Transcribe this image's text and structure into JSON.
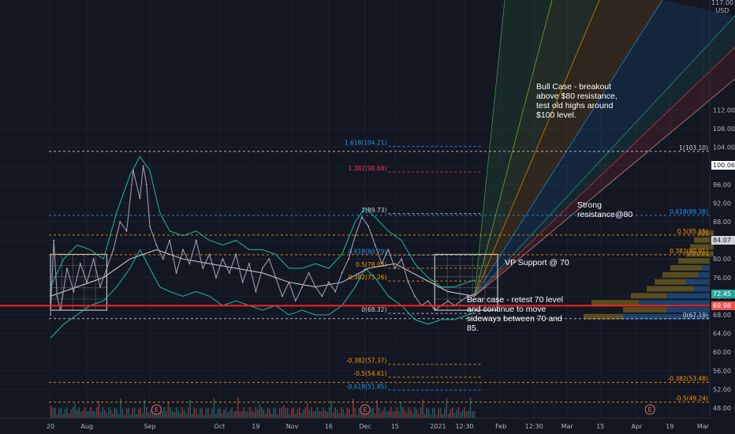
{
  "axis": {
    "currency": "USD",
    "top_partial": "117.00"
  },
  "annotations": {
    "bull": "Bull Case - breakout above $80 resistance, test old highs around $100 level.",
    "resistance": "Strong resistance@80",
    "vp_support": "VP Support @ 70",
    "bear": "Bear case - retest 70 level and continue to move sideways between 70 and 85."
  },
  "price_tags": [
    {
      "text": "100.06",
      "value": 100.06,
      "bg": "#ffffff",
      "fg": "#131722"
    },
    {
      "text": "84.07",
      "value": 84.07,
      "bg": "#d1d4dc",
      "fg": "#131722"
    },
    {
      "text": "72.45",
      "value": 72.45,
      "bg": "#26a69a",
      "fg": "#ffffff"
    },
    {
      "text": "69.98",
      "value": 69.98,
      "bg": "#ef5350",
      "fg": "#ffffff"
    }
  ],
  "colors": {
    "background": "#131722",
    "support_line": "#ff1e1e",
    "fib_orange": "#ff9800",
    "fib_blue": "#2196f3",
    "fib_red": "#f23645",
    "fib_white": "#d1d4dc",
    "price_line": "#9b9bb0",
    "bollinger": "#21b7a6",
    "volume_profile_up": "#1e4a7a",
    "volume_profile_down": "#6b5a1e",
    "box": "#e0e0e0"
  },
  "chart_data": {
    "type": "line",
    "instrument_currency": "USD",
    "y_range": [
      46.0,
      117.0
    ],
    "y_ticks": [
      {
        "label": "48.00",
        "value": 48
      },
      {
        "label": "52.00",
        "value": 52
      },
      {
        "label": "56.00",
        "value": 56
      },
      {
        "label": "60.00",
        "value": 60
      },
      {
        "label": "64.00",
        "value": 64
      },
      {
        "label": "68.00",
        "value": 68
      },
      {
        "label": "72.00",
        "value": 72
      },
      {
        "label": "76.00",
        "value": 76
      },
      {
        "label": "80.00",
        "value": 80
      },
      {
        "label": "84.00",
        "value": 84
      },
      {
        "label": "88.00",
        "value": 88
      },
      {
        "label": "92.00",
        "value": 92
      },
      {
        "label": "96.00",
        "value": 96
      },
      {
        "label": "100.00",
        "value": 100
      },
      {
        "label": "104.00",
        "value": 104
      },
      {
        "label": "108.00",
        "value": 108
      },
      {
        "label": "112.00",
        "value": 112
      }
    ],
    "x_ticks": [
      {
        "label": "20",
        "t": 0
      },
      {
        "label": "Aug",
        "t": 11
      },
      {
        "label": "Sep",
        "t": 30
      },
      {
        "label": "Oct",
        "t": 51
      },
      {
        "label": "19",
        "t": 62
      },
      {
        "label": "Nov",
        "t": 73
      },
      {
        "label": "16",
        "t": 84
      },
      {
        "label": "Dec",
        "t": 95
      },
      {
        "label": "15",
        "t": 104
      },
      {
        "label": "2021",
        "t": 117
      },
      {
        "label": "12:30",
        "t": 125
      },
      {
        "label": "Feb",
        "t": 136
      },
      {
        "label": "12:30",
        "t": 146
      },
      {
        "label": "Mar",
        "t": 156
      },
      {
        "label": "15",
        "t": 166
      },
      {
        "label": "Apr",
        "t": 177
      },
      {
        "label": "19",
        "t": 187
      },
      {
        "label": "Mar",
        "t": 197
      }
    ],
    "price_series": [
      {
        "t": 0,
        "v": 68
      },
      {
        "t": 1,
        "v": 84
      },
      {
        "t": 2,
        "v": 72
      },
      {
        "t": 3,
        "v": 69
      },
      {
        "t": 5,
        "v": 78
      },
      {
        "t": 7,
        "v": 73
      },
      {
        "t": 9,
        "v": 79
      },
      {
        "t": 11,
        "v": 75
      },
      {
        "t": 13,
        "v": 80
      },
      {
        "t": 15,
        "v": 74
      },
      {
        "t": 17,
        "v": 78
      },
      {
        "t": 19,
        "v": 82
      },
      {
        "t": 21,
        "v": 88
      },
      {
        "t": 23,
        "v": 86
      },
      {
        "t": 25,
        "v": 99
      },
      {
        "t": 27,
        "v": 93
      },
      {
        "t": 28,
        "v": 100
      },
      {
        "t": 29,
        "v": 96
      },
      {
        "t": 30,
        "v": 87
      },
      {
        "t": 32,
        "v": 83
      },
      {
        "t": 34,
        "v": 80
      },
      {
        "t": 36,
        "v": 84
      },
      {
        "t": 38,
        "v": 77
      },
      {
        "t": 40,
        "v": 82
      },
      {
        "t": 42,
        "v": 79
      },
      {
        "t": 44,
        "v": 84
      },
      {
        "t": 46,
        "v": 78
      },
      {
        "t": 48,
        "v": 81
      },
      {
        "t": 50,
        "v": 76
      },
      {
        "t": 52,
        "v": 80
      },
      {
        "t": 54,
        "v": 77
      },
      {
        "t": 56,
        "v": 81
      },
      {
        "t": 58,
        "v": 75
      },
      {
        "t": 60,
        "v": 79
      },
      {
        "t": 62,
        "v": 73
      },
      {
        "t": 64,
        "v": 78
      },
      {
        "t": 66,
        "v": 80
      },
      {
        "t": 68,
        "v": 76
      },
      {
        "t": 70,
        "v": 72
      },
      {
        "t": 72,
        "v": 75
      },
      {
        "t": 74,
        "v": 71
      },
      {
        "t": 76,
        "v": 74
      },
      {
        "t": 78,
        "v": 77
      },
      {
        "t": 80,
        "v": 74
      },
      {
        "t": 82,
        "v": 72
      },
      {
        "t": 84,
        "v": 75
      },
      {
        "t": 86,
        "v": 73
      },
      {
        "t": 88,
        "v": 77
      },
      {
        "t": 90,
        "v": 80
      },
      {
        "t": 92,
        "v": 85
      },
      {
        "t": 94,
        "v": 89
      },
      {
        "t": 96,
        "v": 87
      },
      {
        "t": 98,
        "v": 83
      },
      {
        "t": 100,
        "v": 79
      },
      {
        "t": 102,
        "v": 82
      },
      {
        "t": 104,
        "v": 78
      },
      {
        "t": 106,
        "v": 80
      },
      {
        "t": 108,
        "v": 75
      },
      {
        "t": 110,
        "v": 72
      },
      {
        "t": 112,
        "v": 70
      },
      {
        "t": 114,
        "v": 71
      },
      {
        "t": 116,
        "v": 69
      },
      {
        "t": 118,
        "v": 70
      },
      {
        "t": 120,
        "v": 71
      },
      {
        "t": 122,
        "v": 70
      },
      {
        "t": 124,
        "v": 71
      },
      {
        "t": 126,
        "v": 72
      },
      {
        "t": 128,
        "v": 72.45
      }
    ],
    "upper_band": [
      {
        "t": 0,
        "v": 74
      },
      {
        "t": 4,
        "v": 80
      },
      {
        "t": 8,
        "v": 83
      },
      {
        "t": 12,
        "v": 82
      },
      {
        "t": 16,
        "v": 80
      },
      {
        "t": 20,
        "v": 90
      },
      {
        "t": 24,
        "v": 98
      },
      {
        "t": 27,
        "v": 102
      },
      {
        "t": 30,
        "v": 99
      },
      {
        "t": 33,
        "v": 90
      },
      {
        "t": 36,
        "v": 86
      },
      {
        "t": 40,
        "v": 85
      },
      {
        "t": 44,
        "v": 86
      },
      {
        "t": 48,
        "v": 84
      },
      {
        "t": 52,
        "v": 83
      },
      {
        "t": 56,
        "v": 84
      },
      {
        "t": 60,
        "v": 82
      },
      {
        "t": 64,
        "v": 82
      },
      {
        "t": 68,
        "v": 81
      },
      {
        "t": 72,
        "v": 78
      },
      {
        "t": 76,
        "v": 78
      },
      {
        "t": 80,
        "v": 79
      },
      {
        "t": 84,
        "v": 78
      },
      {
        "t": 88,
        "v": 81
      },
      {
        "t": 92,
        "v": 88
      },
      {
        "t": 95,
        "v": 91
      },
      {
        "t": 98,
        "v": 89
      },
      {
        "t": 102,
        "v": 86
      },
      {
        "t": 106,
        "v": 84
      },
      {
        "t": 110,
        "v": 79
      },
      {
        "t": 114,
        "v": 76
      },
      {
        "t": 118,
        "v": 74
      },
      {
        "t": 122,
        "v": 74
      },
      {
        "t": 126,
        "v": 75
      },
      {
        "t": 128,
        "v": 75.5
      }
    ],
    "lower_band": [
      {
        "t": 0,
        "v": 63
      },
      {
        "t": 4,
        "v": 66
      },
      {
        "t": 8,
        "v": 68
      },
      {
        "t": 12,
        "v": 70
      },
      {
        "t": 16,
        "v": 71
      },
      {
        "t": 20,
        "v": 74
      },
      {
        "t": 24,
        "v": 78
      },
      {
        "t": 27,
        "v": 82
      },
      {
        "t": 30,
        "v": 78
      },
      {
        "t": 33,
        "v": 74
      },
      {
        "t": 36,
        "v": 73
      },
      {
        "t": 40,
        "v": 72
      },
      {
        "t": 44,
        "v": 73
      },
      {
        "t": 48,
        "v": 72
      },
      {
        "t": 52,
        "v": 70
      },
      {
        "t": 56,
        "v": 71
      },
      {
        "t": 60,
        "v": 70
      },
      {
        "t": 64,
        "v": 69
      },
      {
        "t": 68,
        "v": 70
      },
      {
        "t": 72,
        "v": 68
      },
      {
        "t": 76,
        "v": 69
      },
      {
        "t": 80,
        "v": 68
      },
      {
        "t": 84,
        "v": 68
      },
      {
        "t": 88,
        "v": 70
      },
      {
        "t": 92,
        "v": 74
      },
      {
        "t": 95,
        "v": 78
      },
      {
        "t": 98,
        "v": 76
      },
      {
        "t": 102,
        "v": 72
      },
      {
        "t": 106,
        "v": 70
      },
      {
        "t": 110,
        "v": 67
      },
      {
        "t": 114,
        "v": 66
      },
      {
        "t": 118,
        "v": 67
      },
      {
        "t": 122,
        "v": 67
      },
      {
        "t": 126,
        "v": 68
      },
      {
        "t": 128,
        "v": 68.5
      }
    ],
    "moving_average": [
      {
        "t": 0,
        "v": 72
      },
      {
        "t": 8,
        "v": 74
      },
      {
        "t": 16,
        "v": 76
      },
      {
        "t": 24,
        "v": 80
      },
      {
        "t": 32,
        "v": 82
      },
      {
        "t": 40,
        "v": 80
      },
      {
        "t": 48,
        "v": 79
      },
      {
        "t": 56,
        "v": 78
      },
      {
        "t": 64,
        "v": 77
      },
      {
        "t": 72,
        "v": 75
      },
      {
        "t": 80,
        "v": 74
      },
      {
        "t": 88,
        "v": 75
      },
      {
        "t": 96,
        "v": 78
      },
      {
        "t": 104,
        "v": 79
      },
      {
        "t": 112,
        "v": 76
      },
      {
        "t": 120,
        "v": 73
      },
      {
        "t": 128,
        "v": 72
      }
    ],
    "support_level": 69.98,
    "fib_levels": [
      {
        "label": "1.618(104.21)",
        "value": 104.21,
        "x1": 102,
        "x2": 130,
        "color": "#2196f3"
      },
      {
        "label": "1.382(98.68)",
        "value": 98.68,
        "x1": 102,
        "x2": 130,
        "color": "#f23645"
      },
      {
        "label": "1(89.73)",
        "value": 89.73,
        "x1": 102,
        "x2": 130,
        "color": "#d1d4dc"
      },
      {
        "label": "0.618(80.79)",
        "value": 80.79,
        "x1": 102,
        "x2": 130,
        "color": "#2196f3"
      },
      {
        "label": "0.5(78.03)",
        "value": 78.03,
        "x1": 102,
        "x2": 130,
        "color": "#ff9800"
      },
      {
        "label": "0.382(75.26)",
        "value": 75.26,
        "x1": 102,
        "x2": 130,
        "color": "#ff9800"
      },
      {
        "label": "0(68.32)",
        "value": 68.32,
        "x1": 102,
        "x2": 130,
        "color": "#d1d4dc"
      },
      {
        "label": "-0.382(57.37)",
        "value": 57.37,
        "x1": 102,
        "x2": 130,
        "color": "#ff9800"
      },
      {
        "label": "-0.5(54.61)",
        "value": 54.61,
        "x1": 102,
        "x2": 130,
        "color": "#ff9800"
      },
      {
        "label": "-0.618(51.85)",
        "value": 51.85,
        "x1": 102,
        "x2": 130,
        "color": "#2196f3"
      },
      {
        "label": "1(103.10)",
        "value": 103.1,
        "x1": 0,
        "x2": 197,
        "color": "#d1d4dc"
      },
      {
        "label": "0.618(89.38)",
        "value": 89.38,
        "x1": 0,
        "x2": 197,
        "color": "#2196f3"
      },
      {
        "label": "0.5(85.15)",
        "value": 85.15,
        "x1": 0,
        "x2": 197,
        "color": "#ff9800"
      },
      {
        "label": "0.382(80.91)",
        "value": 80.91,
        "x1": 0,
        "x2": 197,
        "color": "#ff9800"
      },
      {
        "label": "0(67.19)",
        "value": 67.19,
        "x1": 0,
        "x2": 197,
        "color": "#d1d4dc"
      },
      {
        "label": "-0.382(53.48)",
        "value": 53.48,
        "x1": 0,
        "x2": 197,
        "color": "#ff9800"
      },
      {
        "label": "-0.5(49.24)",
        "value": 49.24,
        "x1": 0,
        "x2": 197,
        "color": "#ff9800"
      }
    ],
    "earnings_markers": [
      {
        "label": "E",
        "t": 32
      },
      {
        "label": "E",
        "t": 95
      },
      {
        "label": "E",
        "t": 181
      }
    ],
    "grid": true,
    "legend": "none"
  }
}
